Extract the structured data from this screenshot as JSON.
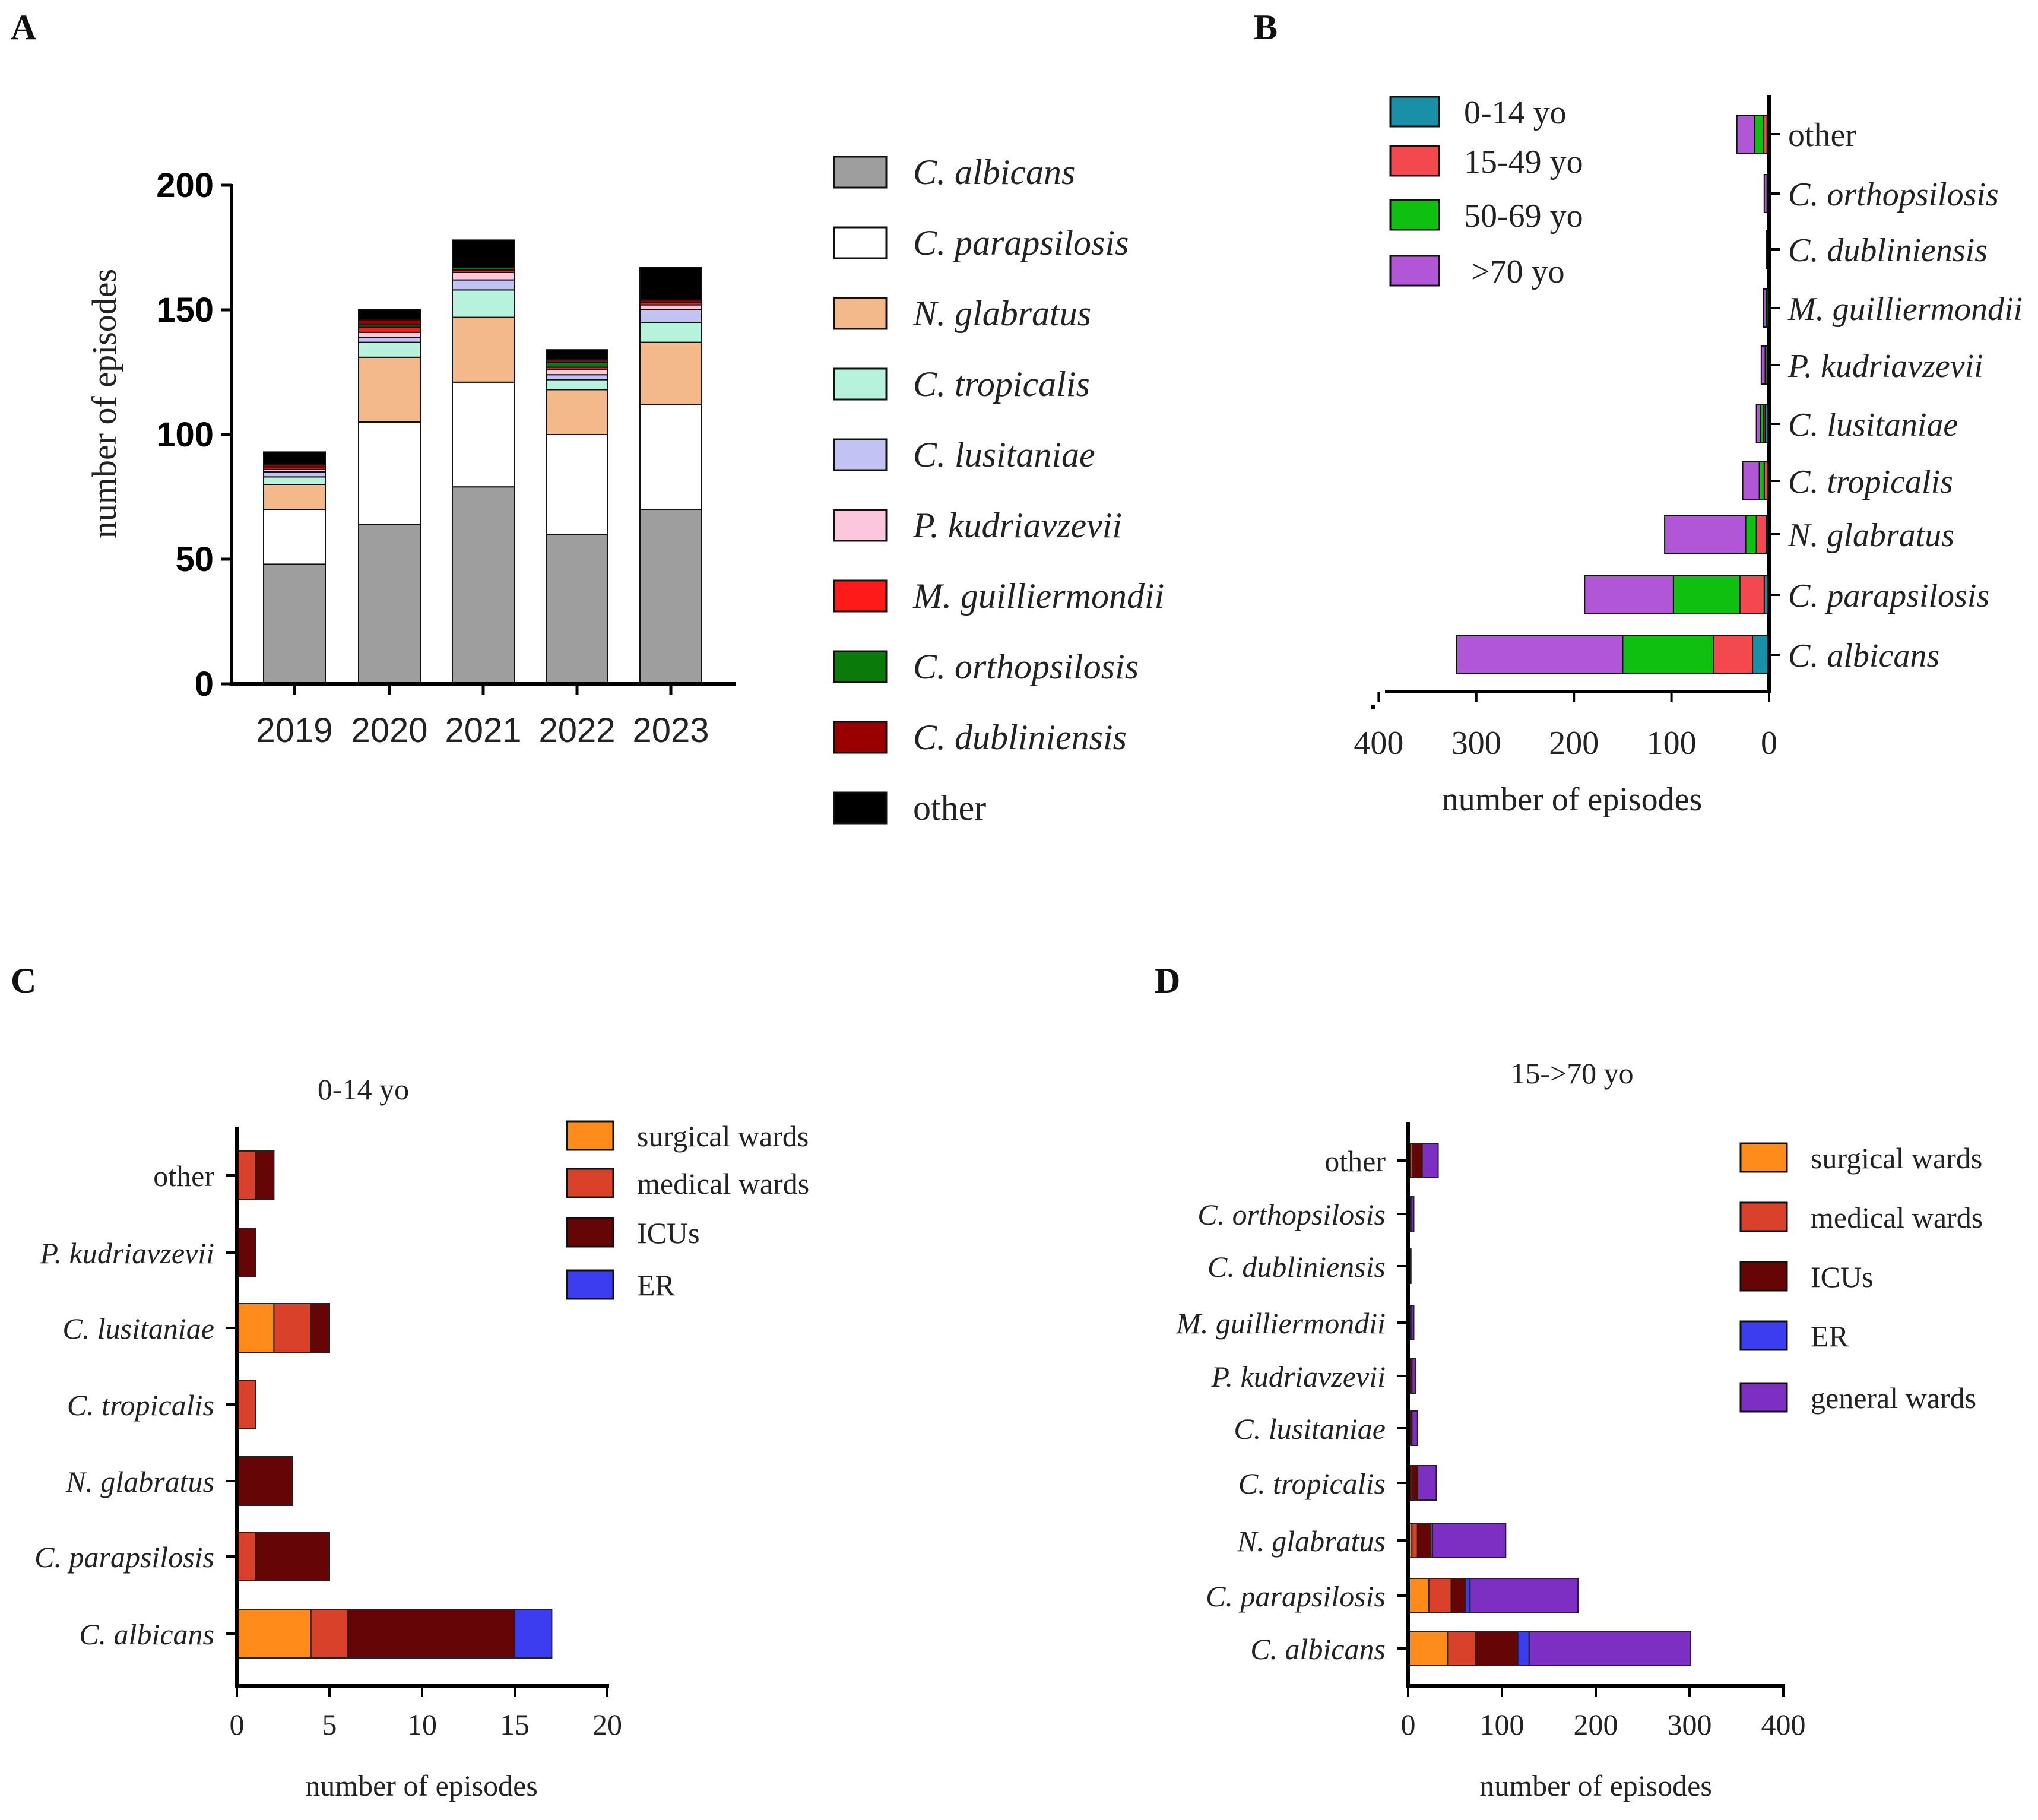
{
  "colors": {
    "species": {
      "C. albicans": "#9e9e9e",
      "C. parapsilosis": "#ffffff",
      "N. glabratus": "#f4b98a",
      "C. tropicalis": "#b7f2dc",
      "C. lusitaniae": "#c2c2f5",
      "P. kudriavzevii": "#fcc6dc",
      "M. guilliermondii": "#ff1a1a",
      "C. orthopsilosis": "#0a7a0a",
      "C. dubliniensis": "#9b0000",
      "other": "#000000"
    },
    "age": {
      "0-14 yo": "#1a8fa8",
      "15-49 yo": "#f2484e",
      "50-69 yo": "#10c010",
      ">70 yo": "#b256d8"
    },
    "ward": {
      "surgical wards": "#ff8c1a",
      "medical wards": "#d9412a",
      "ICUs": "#650505",
      "ER": "#3c3cf0",
      "general wards": "#7d2fc4"
    }
  },
  "panels": {
    "A": {
      "letter": "A"
    },
    "B": {
      "letter": "B"
    },
    "C": {
      "letter": "C"
    },
    "D": {
      "letter": "D"
    }
  },
  "chart_data": [
    {
      "panel": "A",
      "type": "bar",
      "stacked": true,
      "title": "",
      "xlabel": "",
      "ylabel": "number of episodes",
      "ylim": [
        0,
        200
      ],
      "yticks": [
        0,
        50,
        100,
        150,
        200
      ],
      "categories": [
        "2019",
        "2020",
        "2021",
        "2022",
        "2023"
      ],
      "legend_position": "right",
      "series": [
        {
          "name": "C. albicans",
          "italic": true,
          "values": [
            48,
            64,
            79,
            60,
            70
          ]
        },
        {
          "name": "C. parapsilosis",
          "italic": true,
          "values": [
            22,
            41,
            42,
            40,
            42
          ]
        },
        {
          "name": "N. glabratus",
          "italic": true,
          "values": [
            10,
            26,
            26,
            18,
            25
          ]
        },
        {
          "name": "C. tropicalis",
          "italic": true,
          "values": [
            3,
            6,
            11,
            4,
            8
          ]
        },
        {
          "name": "C. lusitaniae",
          "italic": true,
          "values": [
            2,
            2,
            4,
            2,
            5
          ]
        },
        {
          "name": "P. kudriavzevii",
          "italic": true,
          "values": [
            1,
            2,
            3,
            2,
            2
          ]
        },
        {
          "name": "M. guilliermondii",
          "italic": true,
          "values": [
            1,
            2,
            1,
            1,
            1
          ]
        },
        {
          "name": "C. orthopsilosis",
          "italic": true,
          "values": [
            0,
            1,
            1,
            2,
            0
          ]
        },
        {
          "name": "C. dubliniensis",
          "italic": true,
          "values": [
            1,
            2,
            0,
            1,
            1
          ]
        },
        {
          "name": "other",
          "italic": false,
          "values": [
            5,
            4,
            11,
            4,
            13
          ]
        }
      ]
    },
    {
      "panel": "B",
      "type": "bar",
      "orientation": "horizontal",
      "stacked": true,
      "direction": "right-to-left",
      "title": "",
      "xlabel": "number of episodes",
      "xlim": [
        0,
        400
      ],
      "xticks": [
        400,
        300,
        200,
        100,
        0
      ],
      "categories": [
        "other",
        "C. orthopsilosis",
        "C. dubliniensis",
        "M. guilliermondii",
        "P. kudriavzevii",
        "C. lusitaniae",
        "C. tropicalis",
        "N. glabratus",
        "C. parapsilosis",
        "C. albicans"
      ],
      "categories_italic": [
        false,
        true,
        true,
        true,
        true,
        true,
        true,
        true,
        true,
        true
      ],
      "legend_position": "top-left",
      "series": [
        {
          "name": "0-14 yo",
          "values": [
            2,
            0,
            0,
            0,
            1,
            4,
            1,
            3,
            5,
            17
          ]
        },
        {
          "name": "15-49 yo",
          "values": [
            4,
            1,
            1,
            1,
            1,
            2,
            4,
            10,
            25,
            40
          ]
        },
        {
          "name": "50-69 yo",
          "values": [
            9,
            1,
            1,
            2,
            2,
            3,
            5,
            11,
            68,
            93
          ]
        },
        {
          "name": ">70 yo",
          "values": [
            18,
            3,
            1,
            3,
            4,
            4,
            17,
            83,
            91,
            170
          ]
        }
      ]
    },
    {
      "panel": "C",
      "type": "bar",
      "orientation": "horizontal",
      "stacked": true,
      "title": "0-14 yo",
      "xlabel": "number of episodes",
      "xlim": [
        0,
        20
      ],
      "xticks": [
        0,
        5,
        10,
        15,
        20
      ],
      "categories": [
        "other",
        "P. kudriavzevii",
        "C. lusitaniae",
        "C. tropicalis",
        "N. glabratus",
        "C. parapsilosis",
        "C. albicans"
      ],
      "categories_italic": [
        false,
        true,
        true,
        true,
        true,
        true,
        true
      ],
      "legend_position": "top-right",
      "series": [
        {
          "name": "surgical wards",
          "values": [
            0,
            0,
            2,
            0,
            0,
            0,
            4
          ]
        },
        {
          "name": "medical wards",
          "values": [
            1,
            0,
            2,
            1,
            0,
            1,
            2
          ]
        },
        {
          "name": "ICUs",
          "values": [
            1,
            1,
            1,
            0,
            3,
            4,
            9
          ]
        },
        {
          "name": "ER",
          "values": [
            0,
            0,
            0,
            0,
            0,
            0,
            2
          ]
        }
      ]
    },
    {
      "panel": "D",
      "type": "bar",
      "orientation": "horizontal",
      "stacked": true,
      "title": "15->70 yo",
      "xlabel": "number of episodes",
      "xlim": [
        0,
        400
      ],
      "xticks": [
        0,
        100,
        200,
        300,
        400
      ],
      "categories": [
        "other",
        "C. orthopsilosis",
        "C. dubliniensis",
        "M. guilliermondii",
        "P. kudriavzevii",
        "C. lusitaniae",
        "C. tropicalis",
        "N. glabratus",
        "C. parapsilosis",
        "C. albicans"
      ],
      "categories_italic": [
        false,
        true,
        true,
        true,
        true,
        true,
        true,
        true,
        true,
        true
      ],
      "legend_position": "top-right",
      "series": [
        {
          "name": "surgical wards",
          "values": [
            2,
            0,
            0,
            0,
            0,
            0,
            2,
            4,
            22,
            42
          ]
        },
        {
          "name": "medical wards",
          "values": [
            3,
            1,
            0,
            1,
            1,
            1,
            2,
            6,
            24,
            30
          ]
        },
        {
          "name": "ICUs",
          "values": [
            10,
            2,
            2,
            2,
            3,
            3,
            6,
            14,
            15,
            45
          ]
        },
        {
          "name": "ER",
          "values": [
            0,
            0,
            0,
            0,
            0,
            0,
            0,
            2,
            5,
            12
          ]
        },
        {
          "name": "general wards",
          "values": [
            17,
            3,
            1,
            3,
            4,
            6,
            20,
            78,
            115,
            172
          ]
        }
      ]
    }
  ]
}
